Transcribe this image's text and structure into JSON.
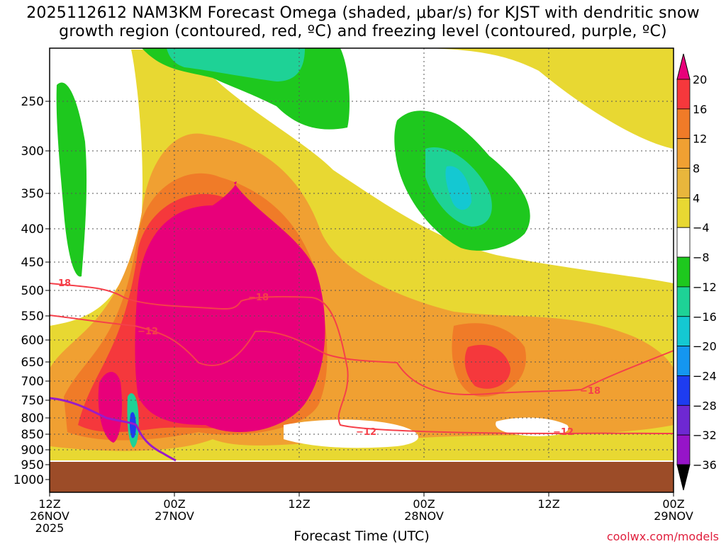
{
  "chart_data": {
    "type": "heatmap",
    "title_line1": "2025112612 NAM3KM Forecast Omega (shaded, μbar/s) for KJST with dendritic snow",
    "title_line2": "growth region (contoured, red, ºC) and freezing level (contoured, purple, ºC)",
    "xlabel": "Forecast Time (UTC)",
    "ylabel": "",
    "y_ticks": [
      "250",
      "300",
      "350",
      "400",
      "450",
      "500",
      "550",
      "600",
      "650",
      "700",
      "750",
      "800",
      "850",
      "900",
      "950",
      "1000"
    ],
    "x_ticks": [
      {
        "label": "12Z",
        "sub": "26NOV",
        "year": "2025"
      },
      {
        "label": "00Z",
        "sub": "27NOV",
        "year": ""
      },
      {
        "label": "12Z",
        "sub": "",
        "year": ""
      },
      {
        "label": "00Z",
        "sub": "28NOV",
        "year": ""
      },
      {
        "label": "12Z",
        "sub": "",
        "year": ""
      },
      {
        "label": "00Z",
        "sub": "29NOV",
        "year": ""
      }
    ],
    "x_range_hours": [
      0,
      60
    ],
    "y_range_hpa": [
      200,
      1050
    ],
    "colorbar": {
      "labels": [
        "20",
        "16",
        "12",
        "8",
        "4",
        "−4",
        "−8",
        "−12",
        "−16",
        "−20",
        "−24",
        "−28",
        "−32",
        "−36"
      ],
      "colors": [
        "#e8007a",
        "#f5383c",
        "#f07b28",
        "#f0a032",
        "#e8b63c",
        "#e8d832",
        "#ffffff",
        "#1ec81e",
        "#1ed296",
        "#14c8d2",
        "#1496f0",
        "#1e3cf0",
        "#6e28d2",
        "#9614c8",
        "#a0a0a0",
        "#000000"
      ]
    },
    "contour_labels": [
      {
        "value": "18",
        "kind": "dgz"
      },
      {
        "value": "−18",
        "kind": "dgz"
      },
      {
        "value": "−12",
        "kind": "dgz"
      },
      {
        "value": "−12",
        "kind": "dgz"
      },
      {
        "value": "−18",
        "kind": "dgz"
      },
      {
        "value": "−12",
        "kind": "dgz"
      }
    ],
    "colors": {
      "dgz": "#f5404a",
      "freezing": "#9a1bc8",
      "terrain": "#9c4c28",
      "grid": "#555555"
    },
    "watermark": "coolwx.com/models"
  }
}
